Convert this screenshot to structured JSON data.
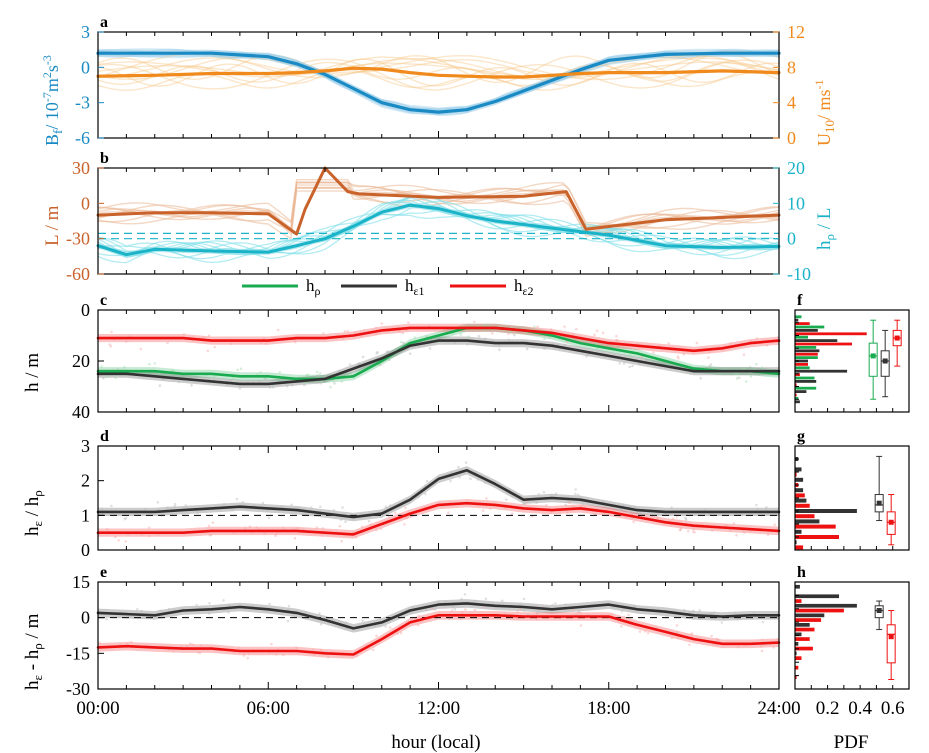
{
  "figure": {
    "xlabel": "hour (local)",
    "pdf_label": "PDF",
    "x_ticks": [
      "00:00",
      "06:00",
      "12:00",
      "18:00",
      "24:00"
    ],
    "pdf_ticks": [
      "0.2",
      "0.4",
      "0.6"
    ],
    "pdf_zero_tick": "0",
    "legend": [
      {
        "name": "h",
        "sub": "ρ",
        "color": "#1aab50"
      },
      {
        "name": "h",
        "sub": "ε1",
        "color": "#333333"
      },
      {
        "name": "h",
        "sub": "ε2",
        "color": "#ee1111"
      }
    ]
  },
  "chart_data": [
    {
      "panel": "a",
      "type": "line",
      "title": "a",
      "ylabel_left": "B_f / 10^-7 m^2 s^-3",
      "ylabel_right": "U_10 / ms^-1",
      "ylim_left": [
        -6,
        3
      ],
      "yticks_left": [
        "3",
        "0",
        "-3",
        "-6"
      ],
      "ylim_right": [
        0,
        12
      ],
      "yticks_right": [
        "12",
        "8",
        "4",
        "0"
      ],
      "x": [
        0,
        2,
        4,
        6,
        7,
        8,
        9,
        10,
        11,
        12,
        13,
        14,
        15,
        16,
        17,
        18,
        20,
        22,
        24
      ],
      "series": [
        {
          "axis": "left",
          "color": "#1a8ac4",
          "values": [
            1.2,
            1.2,
            1.2,
            0.9,
            0.3,
            -0.6,
            -1.8,
            -3.0,
            -3.6,
            -3.8,
            -3.6,
            -2.9,
            -2.0,
            -1.1,
            -0.2,
            0.6,
            1.1,
            1.2,
            1.2
          ]
        },
        {
          "axis": "right",
          "color": "#f08a1c",
          "values": [
            7.0,
            7.1,
            7.3,
            7.3,
            7.4,
            7.6,
            7.9,
            7.8,
            7.4,
            7.1,
            7.0,
            6.9,
            6.9,
            7.1,
            7.3,
            7.4,
            7.4,
            7.6,
            7.4
          ]
        }
      ]
    },
    {
      "panel": "b",
      "type": "line",
      "title": "b",
      "ylabel_left": "L / m",
      "ylabel_right": "h_ρ / L",
      "ylim_left": [
        -60,
        30
      ],
      "yticks_left": [
        "30",
        "0",
        "-30",
        "-60"
      ],
      "ylim_right": [
        -10,
        20
      ],
      "yticks_right": [
        "20",
        "10",
        "0",
        "-10"
      ],
      "dashed_right": [
        0,
        1.5
      ],
      "series": [
        {
          "axis": "left",
          "color": "#c9622b",
          "x": [
            0,
            2,
            4,
            6,
            7,
            7.3,
            8,
            8.8,
            9.2,
            12,
            15,
            16.5,
            17.2,
            20,
            24
          ],
          "values": [
            -10,
            -8,
            -8,
            -9,
            -26,
            -5,
            30,
            10,
            8,
            5,
            6,
            10,
            -22,
            -14,
            -10
          ]
        },
        {
          "axis": "right",
          "color": "#1bb3c8",
          "x": [
            0,
            1,
            2,
            4,
            6,
            7,
            8,
            9,
            10,
            11,
            12,
            13,
            14,
            15,
            16,
            17,
            18,
            19,
            20,
            22,
            24
          ],
          "values": [
            -2,
            -4.5,
            -3,
            -3.5,
            -3.8,
            -2,
            0,
            3.5,
            7.5,
            9.5,
            8.5,
            6.5,
            5,
            4,
            3,
            2,
            1,
            -0.5,
            -2,
            -2.5,
            -2.2
          ]
        }
      ]
    },
    {
      "panel": "c",
      "type": "line",
      "title": "c",
      "ylabel": "h / m",
      "ylim": [
        40,
        0
      ],
      "yticks": [
        "0",
        "20",
        "40"
      ],
      "x": [
        0,
        1,
        2,
        3,
        4,
        5,
        6,
        7,
        8,
        9,
        10,
        11,
        12,
        13,
        14,
        15,
        16,
        17,
        18,
        19,
        20,
        21,
        22,
        23,
        24
      ],
      "series": [
        {
          "name": "h_ρ",
          "color": "#1aab50",
          "values": [
            24,
            24,
            24,
            25,
            25,
            26,
            26,
            27,
            27,
            26,
            20,
            13,
            10,
            7,
            7,
            8,
            10,
            13,
            15,
            17,
            20,
            23,
            24,
            24,
            25
          ]
        },
        {
          "name": "h_ε1",
          "color": "#333333",
          "values": [
            25,
            25,
            26,
            27,
            28,
            29,
            29,
            28,
            27,
            23,
            19,
            14,
            12,
            12,
            13,
            13,
            14,
            16,
            18,
            20,
            22,
            24,
            24,
            24,
            24
          ]
        },
        {
          "name": "h_ε2",
          "color": "#ee1111",
          "values": [
            11,
            11,
            11,
            11,
            12,
            12,
            12,
            11,
            11,
            10,
            8,
            7,
            7,
            7,
            7,
            8,
            9,
            11,
            13,
            14,
            15,
            16,
            15,
            13,
            12
          ]
        }
      ],
      "pdf": {
        "ylim": [
          40,
          0
        ],
        "bins": [
          4,
          8,
          12,
          16,
          20,
          24,
          28,
          32,
          36
        ],
        "series": [
          {
            "name": "h_ρ",
            "color": "#1aab50",
            "values": [
              0.04,
              0.18,
              0.08,
              0.13,
              0.14,
              0.09,
              0.12,
              0.13,
              0.02
            ]
          },
          {
            "name": "h_ε1",
            "color": "#333333",
            "values": [
              0.02,
              0.14,
              0.26,
              0.15,
              0.08,
              0.32,
              0.13,
              0.07,
              0.03
            ]
          },
          {
            "name": "h_ε2",
            "color": "#ee1111",
            "values": [
              0.09,
              0.44,
              0.35,
              0.14,
              0.08,
              0.03,
              0.01,
              0.01,
              0.0
            ]
          }
        ],
        "boxes": [
          {
            "color": "#1aab50",
            "whisker": [
              4,
              35
            ],
            "box": [
              13,
              26
            ],
            "median": 18,
            "mean": 18
          },
          {
            "color": "#333333",
            "whisker": [
              8,
              34
            ],
            "box": [
              16,
              26
            ],
            "median": 20,
            "mean": 20
          },
          {
            "color": "#ee1111",
            "whisker": [
              4,
              22
            ],
            "box": [
              8,
              14
            ],
            "median": 11,
            "mean": 11
          }
        ]
      }
    },
    {
      "panel": "d",
      "type": "line",
      "title": "d",
      "ylabel": "h_ε / h_ρ",
      "ylim": [
        0,
        3
      ],
      "yticks": [
        "3",
        "2",
        "1",
        "0"
      ],
      "dashed": 1,
      "x": [
        0,
        1,
        2,
        3,
        4,
        5,
        6,
        7,
        8,
        9,
        10,
        11,
        12,
        13,
        14,
        15,
        16,
        17,
        18,
        19,
        20,
        21,
        22,
        23,
        24
      ],
      "series": [
        {
          "name": "h_ε1",
          "color": "#333333",
          "values": [
            1.1,
            1.1,
            1.1,
            1.15,
            1.2,
            1.25,
            1.2,
            1.15,
            1.05,
            0.95,
            1.05,
            1.45,
            2.05,
            2.3,
            1.9,
            1.45,
            1.5,
            1.45,
            1.3,
            1.15,
            1.1,
            1.1,
            1.1,
            1.1,
            1.1
          ]
        },
        {
          "name": "h_ε2",
          "color": "#ee1111",
          "values": [
            0.5,
            0.5,
            0.5,
            0.5,
            0.55,
            0.55,
            0.55,
            0.55,
            0.5,
            0.45,
            0.75,
            1.05,
            1.3,
            1.35,
            1.3,
            1.2,
            1.15,
            1.2,
            1.1,
            0.95,
            0.8,
            0.7,
            0.65,
            0.6,
            0.55
          ]
        }
      ],
      "pdf": {
        "ylim": [
          0,
          3
        ],
        "bins": [
          0.15,
          0.45,
          0.75,
          1.05,
          1.35,
          1.65,
          1.95,
          2.25,
          2.55
        ],
        "series": [
          {
            "name": "h_ε1",
            "color": "#333333",
            "values": [
              0.01,
              0.04,
              0.15,
              0.38,
              0.07,
              0.05,
              0.05,
              0.04,
              0.02
            ]
          },
          {
            "name": "h_ε2",
            "color": "#ee1111",
            "values": [
              0.05,
              0.27,
              0.25,
              0.12,
              0.09,
              0.06,
              0.02,
              0.01,
              0.0
            ]
          }
        ],
        "boxes": [
          {
            "color": "#333333",
            "whisker": [
              0.85,
              2.7
            ],
            "box": [
              1.1,
              1.6
            ],
            "median": 1.3,
            "mean": 1.35
          },
          {
            "color": "#ee1111",
            "whisker": [
              0.15,
              1.6
            ],
            "box": [
              0.45,
              1.1
            ],
            "median": 0.8,
            "mean": 0.8
          }
        ]
      }
    },
    {
      "panel": "e",
      "type": "line",
      "title": "e",
      "ylabel": "h_ε - h_ρ / m",
      "ylim": [
        -30,
        15
      ],
      "yticks": [
        "15",
        "0",
        "-15",
        "-30"
      ],
      "dashed": 0,
      "x": [
        0,
        1,
        2,
        3,
        4,
        5,
        6,
        7,
        8,
        9,
        10,
        11,
        12,
        13,
        14,
        15,
        16,
        17,
        18,
        19,
        20,
        21,
        22,
        23,
        24
      ],
      "series": [
        {
          "name": "h_ε1",
          "color": "#333333",
          "values": [
            2,
            1.5,
            1,
            3,
            3.5,
            4.5,
            3.5,
            2,
            -1,
            -4.5,
            -2,
            3,
            5.5,
            6,
            5,
            4.5,
            3.5,
            4.5,
            5.5,
            3.5,
            2.5,
            1,
            0.5,
            1,
            1
          ]
        },
        {
          "name": "h_ε2",
          "color": "#ee1111",
          "values": [
            -12.5,
            -12,
            -12.5,
            -13,
            -13,
            -14,
            -14,
            -14,
            -15,
            -15.5,
            -9,
            -2,
            1,
            1,
            1,
            0.5,
            0.5,
            0.5,
            0.5,
            -3,
            -6,
            -9,
            -11,
            -11,
            -10.5
          ]
        }
      ],
      "pdf": {
        "ylim": [
          -30,
          15
        ],
        "bins": [
          12,
          8,
          4,
          0,
          -4,
          -8,
          -12,
          -16,
          -20,
          -24,
          -28
        ],
        "series": [
          {
            "name": "h_ε1",
            "color": "#333333",
            "values": [
              0.03,
              0.27,
              0.38,
              0.18,
              0.09,
              0.04,
              0.02,
              0.01,
              0.0,
              0.0,
              0.0
            ]
          },
          {
            "name": "h_ε2",
            "color": "#ee1111",
            "values": [
              0.0,
              0.04,
              0.3,
              0.16,
              0.12,
              0.09,
              0.11,
              0.04,
              0.02,
              0.01,
              0.0
            ]
          }
        ],
        "boxes": [
          {
            "color": "#333333",
            "whisker": [
              -5,
              7
            ],
            "box": [
              0,
              5
            ],
            "median": 3,
            "mean": 3
          },
          {
            "color": "#ee1111",
            "whisker": [
              -26,
              3
            ],
            "box": [
              -19,
              -3
            ],
            "median": -7,
            "mean": -8
          }
        ]
      }
    }
  ]
}
